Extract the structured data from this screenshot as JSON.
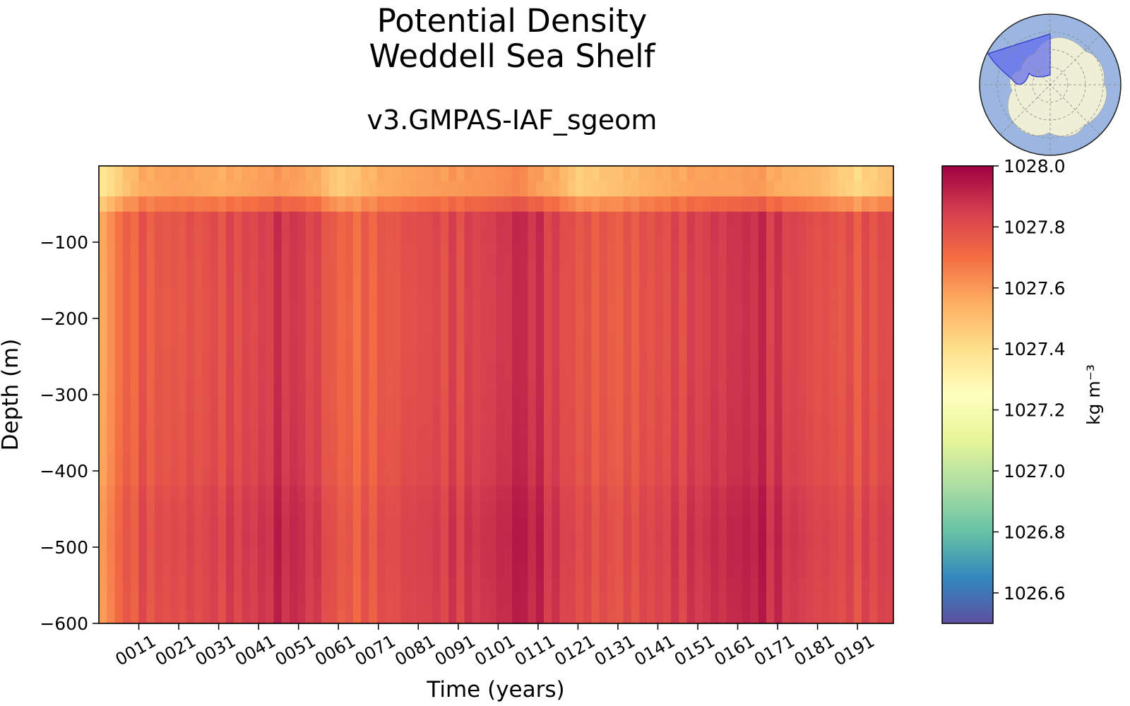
{
  "title_line1": "Potential Density",
  "title_line2": "Weddell Sea Shelf",
  "subtitle": "v3.GMPAS-IAF_sgeom",
  "chart_data": {
    "type": "heatmap",
    "title": "Potential Density\nWeddell Sea Shelf",
    "subtitle": "v3.GMPAS-IAF_sgeom",
    "xlabel": "Time (years)",
    "ylabel": "Depth (m)",
    "xlim": [
      1,
      200
    ],
    "ylim": [
      -600,
      0
    ],
    "x_ticks": [
      11,
      21,
      31,
      41,
      51,
      61,
      71,
      81,
      91,
      101,
      111,
      121,
      131,
      141,
      151,
      161,
      171,
      181,
      191
    ],
    "x_tick_labels": [
      "0011",
      "0021",
      "0031",
      "0041",
      "0051",
      "0061",
      "0071",
      "0081",
      "0091",
      "0101",
      "0111",
      "0121",
      "0131",
      "0141",
      "0151",
      "0161",
      "0171",
      "0181",
      "0191"
    ],
    "y_ticks": [
      -100,
      -200,
      -300,
      -400,
      -500,
      -600
    ],
    "y_tick_labels": [
      "−100",
      "−200",
      "−300",
      "−400",
      "−500",
      "−600"
    ],
    "colorbar": {
      "label": "kg m⁻³",
      "vmin": 1026.5,
      "vmax": 1028.0,
      "ticks": [
        1026.6,
        1026.8,
        1027.0,
        1027.2,
        1027.4,
        1027.6,
        1027.8,
        1028.0
      ],
      "tick_labels": [
        "1026.6",
        "1026.8",
        "1027.0",
        "1027.2",
        "1027.4",
        "1027.6",
        "1027.8",
        "1028.0"
      ],
      "colormap": "Spectral_r",
      "colors": [
        "#5e4fa2",
        "#3288bd",
        "#66c2a5",
        "#abdda4",
        "#e6f598",
        "#ffffbf",
        "#fee08b",
        "#fdae61",
        "#f46d43",
        "#d53e4f",
        "#9e0142"
      ]
    },
    "time_profile": {
      "years": [
        1,
        6,
        11,
        21,
        31,
        41,
        46,
        51,
        56,
        61,
        66,
        71,
        81,
        91,
        101,
        106,
        111,
        116,
        121,
        131,
        141,
        151,
        161,
        166,
        171,
        181,
        191,
        200
      ],
      "deep_density": [
        1027.55,
        1027.72,
        1027.78,
        1027.8,
        1027.82,
        1027.85,
        1027.9,
        1027.88,
        1027.84,
        1027.76,
        1027.74,
        1027.78,
        1027.83,
        1027.84,
        1027.88,
        1027.93,
        1027.9,
        1027.85,
        1027.8,
        1027.78,
        1027.82,
        1027.86,
        1027.9,
        1027.92,
        1027.88,
        1027.82,
        1027.8,
        1027.84
      ],
      "surface_density": [
        1027.35,
        1027.45,
        1027.55,
        1027.58,
        1027.55,
        1027.58,
        1027.6,
        1027.58,
        1027.55,
        1027.45,
        1027.5,
        1027.55,
        1027.58,
        1027.6,
        1027.62,
        1027.65,
        1027.58,
        1027.55,
        1027.45,
        1027.5,
        1027.55,
        1027.58,
        1027.58,
        1027.6,
        1027.55,
        1027.52,
        1027.42,
        1027.5
      ]
    }
  },
  "inset_map": {
    "region": "Weddell Sea Shelf",
    "ocean_color": "#9bb6e0",
    "land_color": "#efefd8",
    "region_color": "#5e6aee"
  }
}
